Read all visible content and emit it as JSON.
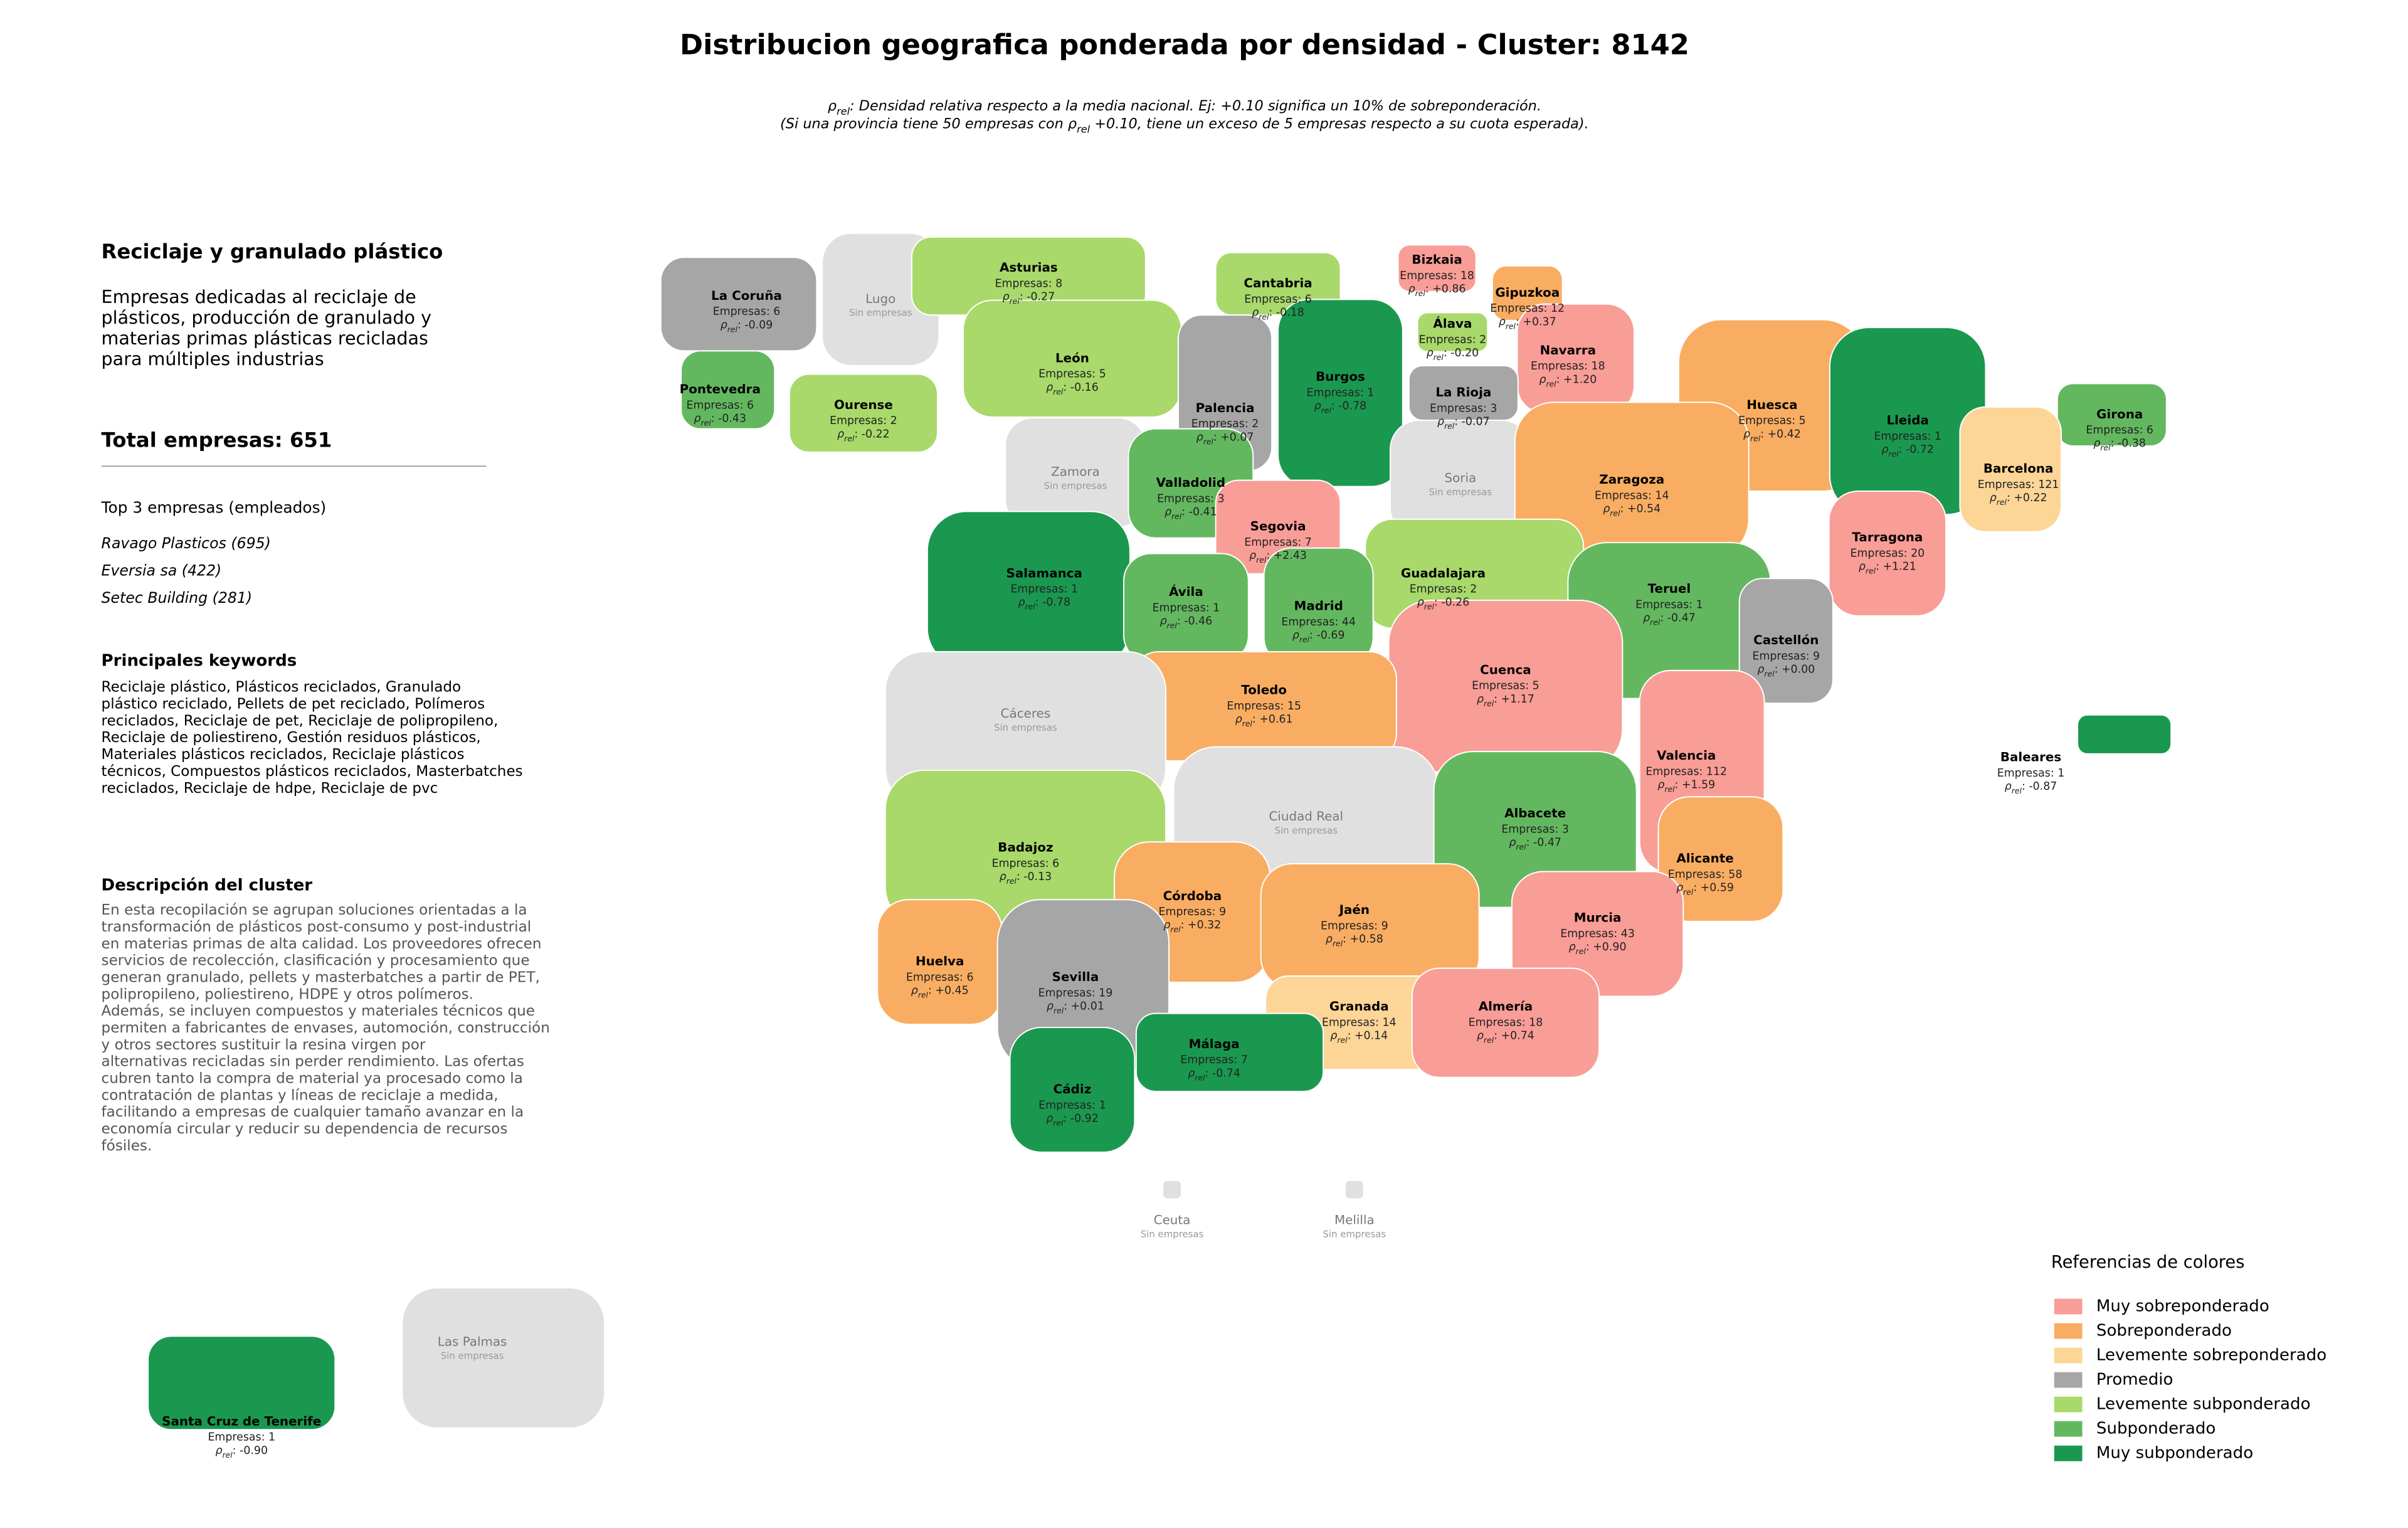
{
  "title": "Distribucion geografica ponderada por densidad - Cluster: 8142",
  "subtitle": [
    [
      "ρ",
      "rel",
      ": Densidad relativa respecto a la media nacional. Ej: +0.10 significa un 10% de sobreponderación."
    ],
    [
      "(Si una provincia tiene 50 empresas con ρ",
      "rel",
      " +0.10, tiene un exceso de 5 empresas respecto a su cuota esperada)."
    ]
  ],
  "panel": {
    "title": "Reciclaje y granulado plástico",
    "description": [
      "Empresas dedicadas al reciclaje de",
      "plásticos, producción de granulado y",
      "materias primas plásticas recicladas",
      "para múltiples industrias"
    ],
    "total_label": "Total empresas:",
    "total": 651,
    "top_title": "Top 3 empresas (empleados)",
    "top": [
      "Ravago Plasticos (695)",
      "Eversia sa (422)",
      "Setec Building (281)"
    ],
    "keywords_title": "Principales keywords",
    "keywords": [
      "Reciclaje plástico, Plásticos reciclados, Granulado",
      "plástico reciclado, Pellets de pet reciclado, Polímeros",
      "reciclados, Reciclaje de pet, Reciclaje de polipropileno,",
      "Reciclaje de poliestireno, Gestión residuos plásticos,",
      "Materiales plásticos reciclados, Reciclaje plásticos",
      "técnicos, Compuestos plásticos reciclados, Masterbatches",
      "reciclados, Reciclaje de hdpe, Reciclaje de pvc"
    ],
    "cluster_title": "Descripción del cluster",
    "cluster": [
      "En esta recopilación se agrupan soluciones orientadas a la",
      "transformación de plásticos post-consumo y post-industrial",
      "en materias primas de alta calidad. Los proveedores ofrecen",
      "servicios de recolección, clasificación y procesamiento que",
      "generan granulado, pellets y masterbatches a partir de PET,",
      "polipropileno, poliestireno, HDPE y otros polímeros.",
      "Además, se incluyen compuestos y materiales técnicos que",
      "permiten a fabricantes de envases, automoción, construcción",
      "y otros sectores sustituir la resina virgen por",
      "alternativas recicladas sin perder rendimiento. Las ofertas",
      "cubren tanto la compra de material ya procesado como la",
      "contratación de plantas y líneas de reciclaje a medida,",
      "facilitando a empresas de cualquier tamaño avanzar en la",
      "economía circular y reducir su dependencia de recursos",
      "fósiles."
    ]
  },
  "map": {
    "empresas_label": "Empresas:",
    "rho_symbol": "ρ",
    "rho_sub": "rel",
    "rho_colon": ":",
    "no_companies_label": "Sin empresas",
    "no_data_color": "#e0e0e0",
    "provinces": [
      {
        "name": "La Coruña",
        "empresas": 6,
        "rho": -0.09,
        "level": 3
      },
      {
        "name": "Lugo"
      },
      {
        "name": "Asturias",
        "empresas": 8,
        "rho": -0.27,
        "level": 4
      },
      {
        "name": "Cantabria",
        "empresas": 6,
        "rho": -0.18,
        "level": 4
      },
      {
        "name": "Bizkaia",
        "empresas": 18,
        "rho": 0.86,
        "rho_label": "+0.86",
        "level": 0
      },
      {
        "name": "Gipuzkoa",
        "empresas": 12,
        "rho": 0.37,
        "rho_label": "+0.37",
        "level": 1
      },
      {
        "name": "Álava",
        "empresas": 2,
        "rho": -0.2,
        "rho_label": "-0.20",
        "level": 4
      },
      {
        "name": "Navarra",
        "empresas": 18,
        "rho": 1.2,
        "rho_label": "+1.20",
        "level": 0
      },
      {
        "name": "Pontevedra",
        "empresas": 6,
        "rho": -0.43,
        "level": 5
      },
      {
        "name": "Ourense",
        "empresas": 2,
        "rho": -0.22,
        "level": 4
      },
      {
        "name": "León",
        "empresas": 5,
        "rho": -0.16,
        "level": 4
      },
      {
        "name": "Palencia",
        "empresas": 2,
        "rho": 0.07,
        "rho_label": "+0.07",
        "level": 3
      },
      {
        "name": "Burgos",
        "empresas": 1,
        "rho": -0.78,
        "level": 6
      },
      {
        "name": "La Rioja",
        "empresas": 3,
        "rho": -0.07,
        "level": 3
      },
      {
        "name": "Huesca",
        "empresas": 5,
        "rho": 0.42,
        "rho_label": "+0.42",
        "level": 1
      },
      {
        "name": "Lleida",
        "empresas": 1,
        "rho": -0.72,
        "level": 6
      },
      {
        "name": "Girona",
        "empresas": 6,
        "rho": -0.38,
        "level": 5
      },
      {
        "name": "Zamora"
      },
      {
        "name": "Valladolid",
        "empresas": 3,
        "rho": -0.41,
        "level": 5
      },
      {
        "name": "Soria"
      },
      {
        "name": "Zaragoza",
        "empresas": 14,
        "rho": 0.54,
        "rho_label": "+0.54",
        "level": 1
      },
      {
        "name": "Barcelona",
        "empresas": 121,
        "rho": 0.22,
        "rho_label": "+0.22",
        "level": 2
      },
      {
        "name": "Segovia",
        "empresas": 7,
        "rho": 2.43,
        "rho_label": "+2.43",
        "level": 0
      },
      {
        "name": "Tarragona",
        "empresas": 20,
        "rho": 1.21,
        "rho_label": "+1.21",
        "level": 0
      },
      {
        "name": "Salamanca",
        "empresas": 1,
        "rho": -0.78,
        "level": 6
      },
      {
        "name": "Guadalajara",
        "empresas": 2,
        "rho": -0.26,
        "level": 4
      },
      {
        "name": "Ávila",
        "empresas": 1,
        "rho": -0.46,
        "level": 5
      },
      {
        "name": "Madrid",
        "empresas": 44,
        "rho": -0.69,
        "level": 5
      },
      {
        "name": "Teruel",
        "empresas": 1,
        "rho": -0.47,
        "level": 5
      },
      {
        "name": "Castellón",
        "empresas": 9,
        "rho": 0,
        "rho_label": "+0.00",
        "level": 3
      },
      {
        "name": "Cuenca",
        "empresas": 5,
        "rho": 1.17,
        "rho_label": "+1.17",
        "level": 0
      },
      {
        "name": "Toledo",
        "empresas": 15,
        "rho": 0.61,
        "rho_label": "+0.61",
        "level": 1
      },
      {
        "name": "Cáceres"
      },
      {
        "name": "Valencia",
        "empresas": 112,
        "rho": 1.59,
        "rho_label": "+1.59",
        "level": 0
      },
      {
        "name": "Baleares",
        "empresas": 1,
        "rho": -0.87,
        "level": 6
      },
      {
        "name": "Ciudad Real"
      },
      {
        "name": "Albacete",
        "empresas": 3,
        "rho": -0.47,
        "level": 5
      },
      {
        "name": "Badajoz",
        "empresas": 6,
        "rho": -0.13,
        "level": 4
      },
      {
        "name": "Alicante",
        "empresas": 58,
        "rho": 0.59,
        "rho_label": "+0.59",
        "level": 1
      },
      {
        "name": "Córdoba",
        "empresas": 9,
        "rho": 0.32,
        "rho_label": "+0.32",
        "level": 1
      },
      {
        "name": "Jaén",
        "empresas": 9,
        "rho": 0.58,
        "rho_label": "+0.58",
        "level": 1
      },
      {
        "name": "Murcia",
        "empresas": 43,
        "rho": 0.9,
        "rho_label": "+0.90",
        "level": 0
      },
      {
        "name": "Huelva",
        "empresas": 6,
        "rho": 0.45,
        "rho_label": "+0.45",
        "level": 1
      },
      {
        "name": "Sevilla",
        "empresas": 19,
        "rho": 0.01,
        "rho_label": "+0.01",
        "level": 3
      },
      {
        "name": "Granada",
        "empresas": 14,
        "rho": 0.14,
        "rho_label": "+0.14",
        "level": 2
      },
      {
        "name": "Almería",
        "empresas": 18,
        "rho": 0.74,
        "rho_label": "+0.74",
        "level": 0
      },
      {
        "name": "Málaga",
        "empresas": 7,
        "rho": -0.74,
        "level": 6
      },
      {
        "name": "Cádiz",
        "empresas": 1,
        "rho": -0.92,
        "level": 6
      },
      {
        "name": "Ceuta"
      },
      {
        "name": "Melilla"
      },
      {
        "name": "Las Palmas"
      },
      {
        "name": "Santa Cruz de Tenerife",
        "empresas": 1,
        "rho": -0.9,
        "rho_label": "-0.90",
        "level": 6
      }
    ]
  },
  "legend": {
    "title": "Referencias de colores",
    "items": [
      {
        "label": "Muy sobreponderado",
        "color": "#f99d97"
      },
      {
        "label": "Sobreponderado",
        "color": "#f9ad62"
      },
      {
        "label": "Levemente sobreponderado",
        "color": "#fdd597"
      },
      {
        "label": "Promedio",
        "color": "#a6a6a6"
      },
      {
        "label": "Levemente subponderado",
        "color": "#a8d96a"
      },
      {
        "label": "Subponderado",
        "color": "#63b85f"
      },
      {
        "label": "Muy subponderado",
        "color": "#1a9850"
      }
    ]
  }
}
